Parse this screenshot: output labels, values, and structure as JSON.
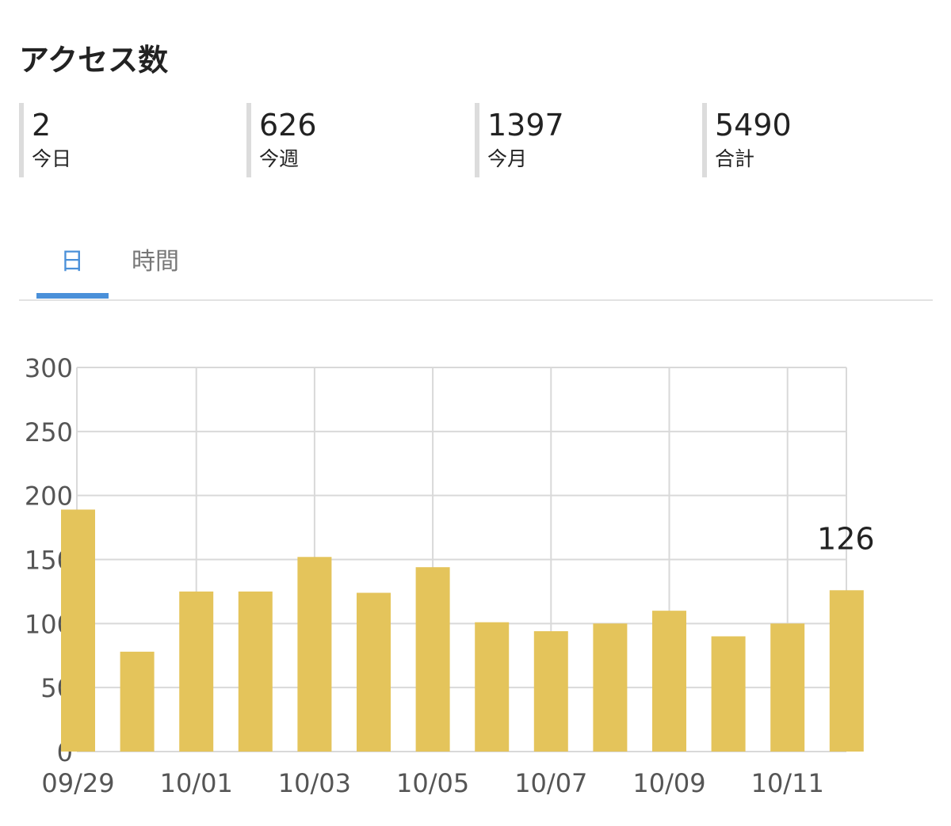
{
  "page": {
    "title": "アクセス数"
  },
  "stats": [
    {
      "value": "2",
      "label": "今日"
    },
    {
      "value": "626",
      "label": "今週"
    },
    {
      "value": "1397",
      "label": "今月"
    },
    {
      "value": "5490",
      "label": "合計"
    }
  ],
  "tabs": [
    {
      "label": "日",
      "active": true
    },
    {
      "label": "時間",
      "active": false
    }
  ],
  "colors": {
    "bar": "#e4c45b",
    "grid": "#d9d9d9",
    "axis_text": "#555555",
    "annotation_text": "#222222",
    "active_tab": "#4a90d9"
  },
  "chart_data": {
    "type": "bar",
    "title": "",
    "xlabel": "",
    "ylabel": "",
    "categories": [
      "09/29",
      "09/30",
      "10/01",
      "10/02",
      "10/03",
      "10/04",
      "10/05",
      "10/06",
      "10/07",
      "10/08",
      "10/09",
      "10/10",
      "10/11",
      "10/12"
    ],
    "x_tick_labels": [
      "09/29",
      "10/01",
      "10/03",
      "10/05",
      "10/07",
      "10/09",
      "10/11"
    ],
    "series": [
      {
        "values": [
          189,
          78,
          125,
          125,
          152,
          124,
          144,
          101,
          94,
          100,
          110,
          90,
          100,
          126
        ]
      }
    ],
    "ylim": [
      0,
      300
    ],
    "y_ticks": [
      0,
      50,
      100,
      150,
      200,
      250,
      300
    ],
    "grid": true,
    "legend": "none",
    "annotation": {
      "category": "10/12",
      "text": "126"
    }
  }
}
